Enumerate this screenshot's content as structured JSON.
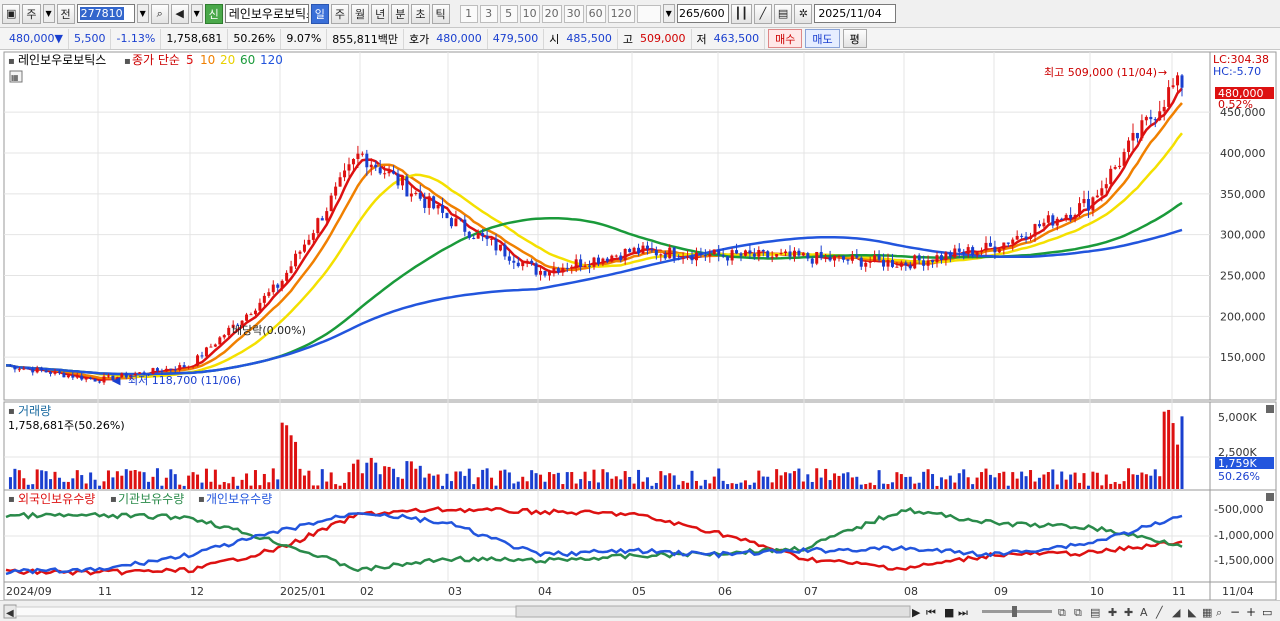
{
  "toolbar": {
    "period_type": "주",
    "prev_label": "전",
    "stock_code": "277810",
    "new_badge": "신",
    "stock_name": "레인보우로보틱스",
    "periods": [
      "일",
      "주",
      "월",
      "년",
      "분",
      "초",
      "틱"
    ],
    "active_period": "일",
    "intervals": [
      "1",
      "3",
      "5",
      "10",
      "20",
      "30",
      "60",
      "120"
    ],
    "bar_count": "265",
    "bar_total": "/600",
    "date": "2025/11/04"
  },
  "quote": {
    "price": "480,000",
    "change": "5,500",
    "change_pct": "-1.13%",
    "volume": "1,758,681",
    "volume_ratio": "50.26%",
    "turnover_rate": "9.07%",
    "trade_value": "855,811백만",
    "ask_label": "호가",
    "ask": "480,000",
    "bid": "479,500",
    "open_label": "시",
    "open": "485,500",
    "high_label": "고",
    "high": "509,000",
    "low_label": "저",
    "low": "463,500",
    "buy_label": "매수",
    "sell_label": "매도",
    "eval_label": "평"
  },
  "price_panel": {
    "title": "레인보우로보틱스",
    "legend_prefix": "종가 단순",
    "ma_periods": [
      "5",
      "10",
      "20",
      "60",
      "120"
    ],
    "ma_colors": [
      "#dd1111",
      "#f08000",
      "#f4e000",
      "#1a9a3a",
      "#2255dd"
    ],
    "max_label": "최고 509,000 (11/04)",
    "min_label": "최저 118,700 (11/06)",
    "dividend_label": "배당락(0.00%)",
    "lc_label": "LC:304.38",
    "hc_label": "HC:-5.70",
    "current_price_tag": "480,000",
    "current_pct_tag": "0.52%",
    "y_ticks": [
      "450,000",
      "400,000",
      "350,000",
      "300,000",
      "250,000",
      "200,000",
      "150,000"
    ]
  },
  "volume_panel": {
    "title": "거래량",
    "current_label": "1,758,681주(50.26%)",
    "y_ticks": [
      "5,000K",
      "2,500K"
    ],
    "current_tag": "1,759K",
    "pct_tag": "50.26%"
  },
  "holding_panel": {
    "series": [
      "외국인보유수량",
      "기관보유수량",
      "개인보유수량"
    ],
    "series_colors": [
      "#dd1111",
      "#2a8a4a",
      "#2255dd"
    ],
    "y_ticks": [
      "-500,000",
      "-1,000,000",
      "-1,500,000"
    ]
  },
  "x_axis": [
    "2024/09",
    "11",
    "12",
    "2025/01",
    "02",
    "03",
    "04",
    "05",
    "06",
    "07",
    "08",
    "09",
    "10",
    "11"
  ],
  "x_axis_right": "11/04",
  "chart_data": {
    "type": "candlestick",
    "ylim": [
      100000,
      520000
    ],
    "months": [
      "2024/09",
      "11",
      "12",
      "2025/01",
      "02",
      "03",
      "04",
      "05",
      "06",
      "07",
      "08",
      "09",
      "10",
      "11"
    ],
    "close_trend": [
      {
        "date": "2024/09",
        "close": 140000
      },
      {
        "date": "2024/11",
        "close": 122000
      },
      {
        "date": "2024/12",
        "close": 140000
      },
      {
        "date": "2025/01",
        "close": 240000
      },
      {
        "date": "2025/02",
        "close": 400000
      },
      {
        "date": "2025/03",
        "close": 320000
      },
      {
        "date": "2025/04",
        "close": 255000
      },
      {
        "date": "2025/05",
        "close": 280000
      },
      {
        "date": "2025/06",
        "close": 275000
      },
      {
        "date": "2025/07",
        "close": 272000
      },
      {
        "date": "2025/08",
        "close": 265000
      },
      {
        "date": "2025/09",
        "close": 285000
      },
      {
        "date": "2025/10",
        "close": 340000
      },
      {
        "date": "2025/11/04",
        "close": 480000
      }
    ],
    "high": 509000,
    "low": 118700
  }
}
